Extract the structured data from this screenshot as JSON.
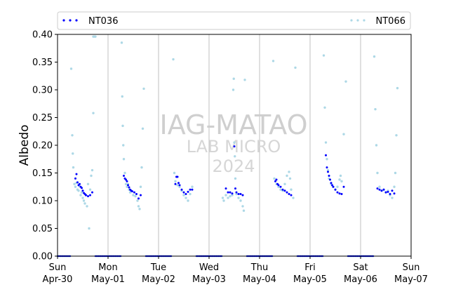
{
  "chart_data": {
    "type": "scatter",
    "ylabel": "Albedo",
    "ylim": [
      0,
      0.4
    ],
    "yticks": [
      "0.00",
      "0.05",
      "0.10",
      "0.15",
      "0.20",
      "0.25",
      "0.30",
      "0.35",
      "0.40"
    ],
    "xlim": [
      "2024-04-30",
      "2024-05-07"
    ],
    "xticks": [
      {
        "day": "Sun",
        "date": "Apr-30"
      },
      {
        "day": "Mon",
        "date": "May-01"
      },
      {
        "day": "Tue",
        "date": "May-02"
      },
      {
        "day": "Wed",
        "date": "May-03"
      },
      {
        "day": "Thu",
        "date": "May-04"
      },
      {
        "day": "Fri",
        "date": "May-05"
      },
      {
        "day": "Sat",
        "date": "May-06"
      },
      {
        "day": "Sun",
        "date": "May-07"
      }
    ],
    "grid": "vertical",
    "legend_position": "top",
    "watermark": {
      "line1": "IAG-MATAO",
      "line2": "LAB MICRO",
      "line3": "2024"
    },
    "series": [
      {
        "name": "NT036",
        "color": "#0000ff",
        "points": [
          [
            "2024-04-30 08:30",
            0.14
          ],
          [
            "2024-04-30 09:00",
            0.148
          ],
          [
            "2024-04-30 09:30",
            0.133
          ],
          [
            "2024-04-30 10:00",
            0.128
          ],
          [
            "2024-04-30 10:30",
            0.13
          ],
          [
            "2024-04-30 11:00",
            0.125
          ],
          [
            "2024-04-30 11:30",
            0.123
          ],
          [
            "2024-04-30 12:00",
            0.118
          ],
          [
            "2024-04-30 12:30",
            0.114
          ],
          [
            "2024-04-30 13:00",
            0.112
          ],
          [
            "2024-04-30 13:30",
            0.11
          ],
          [
            "2024-04-30 14:30",
            0.108
          ],
          [
            "2024-04-30 15:30",
            0.11
          ],
          [
            "2024-04-30 16:30",
            0.115
          ],
          [
            "2024-05-01 07:30",
            0.145
          ],
          [
            "2024-05-01 08:00",
            0.14
          ],
          [
            "2024-05-01 08:30",
            0.138
          ],
          [
            "2024-05-01 09:00",
            0.135
          ],
          [
            "2024-05-01 09:30",
            0.128
          ],
          [
            "2024-05-01 10:00",
            0.124
          ],
          [
            "2024-05-01 10:30",
            0.12
          ],
          [
            "2024-05-01 11:00",
            0.118
          ],
          [
            "2024-05-01 11:30",
            0.117
          ],
          [
            "2024-05-01 12:30",
            0.115
          ],
          [
            "2024-05-01 13:30",
            0.112
          ],
          [
            "2024-05-01 14:30",
            0.104
          ],
          [
            "2024-05-01 15:30",
            0.11
          ],
          [
            "2024-05-02 08:00",
            0.13
          ],
          [
            "2024-05-02 08:30",
            0.143
          ],
          [
            "2024-05-02 09:00",
            0.143
          ],
          [
            "2024-05-02 09:30",
            0.132
          ],
          [
            "2024-05-02 10:00",
            0.128
          ],
          [
            "2024-05-02 11:00",
            0.12
          ],
          [
            "2024-05-02 12:00",
            0.115
          ],
          [
            "2024-05-02 13:00",
            0.112
          ],
          [
            "2024-05-02 14:00",
            0.116
          ],
          [
            "2024-05-02 15:00",
            0.12
          ],
          [
            "2024-05-02 16:00",
            0.12
          ],
          [
            "2024-05-03 08:00",
            0.122
          ],
          [
            "2024-05-03 09:00",
            0.115
          ],
          [
            "2024-05-03 10:00",
            0.115
          ],
          [
            "2024-05-03 11:00",
            0.113
          ],
          [
            "2024-05-03 12:00",
            0.198
          ],
          [
            "2024-05-03 12:30",
            0.122
          ],
          [
            "2024-05-03 13:00",
            0.115
          ],
          [
            "2024-05-03 14:00",
            0.112
          ],
          [
            "2024-05-03 15:00",
            0.112
          ],
          [
            "2024-05-03 16:00",
            0.11
          ],
          [
            "2024-05-04 07:30",
            0.135
          ],
          [
            "2024-05-04 08:00",
            0.138
          ],
          [
            "2024-05-04 08:30",
            0.13
          ],
          [
            "2024-05-04 09:00",
            0.128
          ],
          [
            "2024-05-04 10:00",
            0.125
          ],
          [
            "2024-05-04 11:00",
            0.12
          ],
          [
            "2024-05-04 12:00",
            0.118
          ],
          [
            "2024-05-04 13:00",
            0.115
          ],
          [
            "2024-05-04 14:00",
            0.112
          ],
          [
            "2024-05-04 15:00",
            0.11
          ],
          [
            "2024-05-05 07:30",
            0.182
          ],
          [
            "2024-05-05 08:00",
            0.16
          ],
          [
            "2024-05-05 08:30",
            0.152
          ],
          [
            "2024-05-05 09:00",
            0.145
          ],
          [
            "2024-05-05 09:30",
            0.138
          ],
          [
            "2024-05-05 10:00",
            0.132
          ],
          [
            "2024-05-05 10:30",
            0.128
          ],
          [
            "2024-05-05 11:00",
            0.125
          ],
          [
            "2024-05-05 12:00",
            0.12
          ],
          [
            "2024-05-05 13:00",
            0.115
          ],
          [
            "2024-05-05 14:00",
            0.113
          ],
          [
            "2024-05-05 15:00",
            0.112
          ],
          [
            "2024-05-05 16:00",
            0.125
          ],
          [
            "2024-05-06 08:00",
            0.122
          ],
          [
            "2024-05-06 09:00",
            0.12
          ],
          [
            "2024-05-06 10:00",
            0.118
          ],
          [
            "2024-05-06 11:00",
            0.12
          ],
          [
            "2024-05-06 12:00",
            0.115
          ],
          [
            "2024-05-06 13:00",
            0.116
          ],
          [
            "2024-05-06 14:00",
            0.112
          ],
          [
            "2024-05-06 15:00",
            0.118
          ],
          [
            "2024-05-06 16:00",
            0.113
          ]
        ],
        "night_values": [
          0.0
        ]
      },
      {
        "name": "NT066",
        "color": "#add8e6",
        "points": [
          [
            "2024-04-30 06:30",
            0.338
          ],
          [
            "2024-04-30 07:00",
            0.218
          ],
          [
            "2024-04-30 07:15",
            0.185
          ],
          [
            "2024-04-30 07:30",
            0.16
          ],
          [
            "2024-04-30 08:00",
            0.13
          ],
          [
            "2024-04-30 08:30",
            0.125
          ],
          [
            "2024-04-30 09:00",
            0.132
          ],
          [
            "2024-04-30 09:30",
            0.12
          ],
          [
            "2024-04-30 10:00",
            0.118
          ],
          [
            "2024-04-30 10:30",
            0.126
          ],
          [
            "2024-04-30 11:00",
            0.11
          ],
          [
            "2024-04-30 11:30",
            0.115
          ],
          [
            "2024-04-30 12:00",
            0.105
          ],
          [
            "2024-04-30 12:30",
            0.1
          ],
          [
            "2024-04-30 13:00",
            0.095
          ],
          [
            "2024-04-30 13:30",
            0.11
          ],
          [
            "2024-04-30 14:00",
            0.09
          ],
          [
            "2024-04-30 14:30",
            0.13
          ],
          [
            "2024-04-30 15:00",
            0.05
          ],
          [
            "2024-04-30 15:30",
            0.12
          ],
          [
            "2024-04-30 16:00",
            0.145
          ],
          [
            "2024-04-30 16:30",
            0.155
          ],
          [
            "2024-04-30 17:00",
            0.258
          ],
          [
            "2024-04-30 17:00",
            0.396
          ],
          [
            "2024-04-30 17:30",
            0.396
          ],
          [
            "2024-04-30 18:00",
            0.396
          ],
          [
            "2024-05-01 06:30",
            0.385
          ],
          [
            "2024-05-01 06:45",
            0.288
          ],
          [
            "2024-05-01 07:00",
            0.235
          ],
          [
            "2024-05-01 07:15",
            0.2
          ],
          [
            "2024-05-01 07:30",
            0.175
          ],
          [
            "2024-05-01 08:00",
            0.15
          ],
          [
            "2024-05-01 08:30",
            0.13
          ],
          [
            "2024-05-01 09:00",
            0.125
          ],
          [
            "2024-05-01 09:30",
            0.13
          ],
          [
            "2024-05-01 10:00",
            0.12
          ],
          [
            "2024-05-01 10:30",
            0.115
          ],
          [
            "2024-05-01 11:00",
            0.118
          ],
          [
            "2024-05-01 12:00",
            0.11
          ],
          [
            "2024-05-01 13:00",
            0.108
          ],
          [
            "2024-05-01 14:00",
            0.1
          ],
          [
            "2024-05-01 14:30",
            0.09
          ],
          [
            "2024-05-01 15:00",
            0.085
          ],
          [
            "2024-05-01 15:30",
            0.125
          ],
          [
            "2024-05-01 16:00",
            0.16
          ],
          [
            "2024-05-01 16:30",
            0.23
          ],
          [
            "2024-05-01 17:00",
            0.302
          ],
          [
            "2024-05-02 07:00",
            0.355
          ],
          [
            "2024-05-02 07:30",
            0.15
          ],
          [
            "2024-05-02 08:00",
            0.135
          ],
          [
            "2024-05-02 09:00",
            0.128
          ],
          [
            "2024-05-02 10:00",
            0.125
          ],
          [
            "2024-05-02 11:00",
            0.118
          ],
          [
            "2024-05-02 12:00",
            0.11
          ],
          [
            "2024-05-02 13:00",
            0.105
          ],
          [
            "2024-05-02 14:00",
            0.1
          ],
          [
            "2024-05-02 15:00",
            0.112
          ],
          [
            "2024-05-02 16:00",
            0.125
          ],
          [
            "2024-05-03 06:30",
            0.105
          ],
          [
            "2024-05-03 07:00",
            0.1
          ],
          [
            "2024-05-03 08:00",
            0.11
          ],
          [
            "2024-05-03 09:00",
            0.105
          ],
          [
            "2024-05-03 10:00",
            0.108
          ],
          [
            "2024-05-03 11:00",
            0.11
          ],
          [
            "2024-05-03 11:30",
            0.3
          ],
          [
            "2024-05-03 11:45",
            0.32
          ],
          [
            "2024-05-03 12:00",
            0.205
          ],
          [
            "2024-05-03 12:15",
            0.18
          ],
          [
            "2024-05-03 12:30",
            0.14
          ],
          [
            "2024-05-03 13:00",
            0.112
          ],
          [
            "2024-05-03 14:00",
            0.105
          ],
          [
            "2024-05-03 15:00",
            0.1
          ],
          [
            "2024-05-03 16:00",
            0.09
          ],
          [
            "2024-05-03 16:30",
            0.082
          ],
          [
            "2024-05-03 17:00",
            0.318
          ],
          [
            "2024-05-04 06:30",
            0.352
          ],
          [
            "2024-05-04 07:00",
            0.14
          ],
          [
            "2024-05-04 08:00",
            0.13
          ],
          [
            "2024-05-04 09:00",
            0.125
          ],
          [
            "2024-05-04 10:00",
            0.12
          ],
          [
            "2024-05-04 11:00",
            0.118
          ],
          [
            "2024-05-04 12:00",
            0.13
          ],
          [
            "2024-05-04 13:00",
            0.145
          ],
          [
            "2024-05-04 14:00",
            0.152
          ],
          [
            "2024-05-04 14:30",
            0.14
          ],
          [
            "2024-05-04 15:00",
            0.12
          ],
          [
            "2024-05-04 16:00",
            0.105
          ],
          [
            "2024-05-04 17:00",
            0.34
          ],
          [
            "2024-05-05 06:30",
            0.362
          ],
          [
            "2024-05-05 07:00",
            0.268
          ],
          [
            "2024-05-05 07:30",
            0.205
          ],
          [
            "2024-05-05 08:00",
            0.175
          ],
          [
            "2024-05-05 08:30",
            0.155
          ],
          [
            "2024-05-05 09:00",
            0.14
          ],
          [
            "2024-05-05 10:00",
            0.13
          ],
          [
            "2024-05-05 11:00",
            0.125
          ],
          [
            "2024-05-05 12:00",
            0.12
          ],
          [
            "2024-05-05 13:00",
            0.125
          ],
          [
            "2024-05-05 14:00",
            0.138
          ],
          [
            "2024-05-05 14:30",
            0.145
          ],
          [
            "2024-05-05 15:00",
            0.135
          ],
          [
            "2024-05-05 16:00",
            0.22
          ],
          [
            "2024-05-05 17:00",
            0.315
          ],
          [
            "2024-05-06 06:30",
            0.36
          ],
          [
            "2024-05-06 07:00",
            0.265
          ],
          [
            "2024-05-06 07:30",
            0.2
          ],
          [
            "2024-05-06 08:00",
            0.15
          ],
          [
            "2024-05-06 09:00",
            0.125
          ],
          [
            "2024-05-06 10:00",
            0.118
          ],
          [
            "2024-05-06 11:00",
            0.12
          ],
          [
            "2024-05-06 12:00",
            0.115
          ],
          [
            "2024-05-06 13:00",
            0.118
          ],
          [
            "2024-05-06 14:00",
            0.11
          ],
          [
            "2024-05-06 15:00",
            0.105
          ],
          [
            "2024-05-06 16:00",
            0.125
          ],
          [
            "2024-05-06 16:30",
            0.15
          ],
          [
            "2024-05-06 17:00",
            0.218
          ],
          [
            "2024-05-06 17:30",
            0.303
          ]
        ],
        "night_values": [
          0.0
        ]
      }
    ]
  }
}
